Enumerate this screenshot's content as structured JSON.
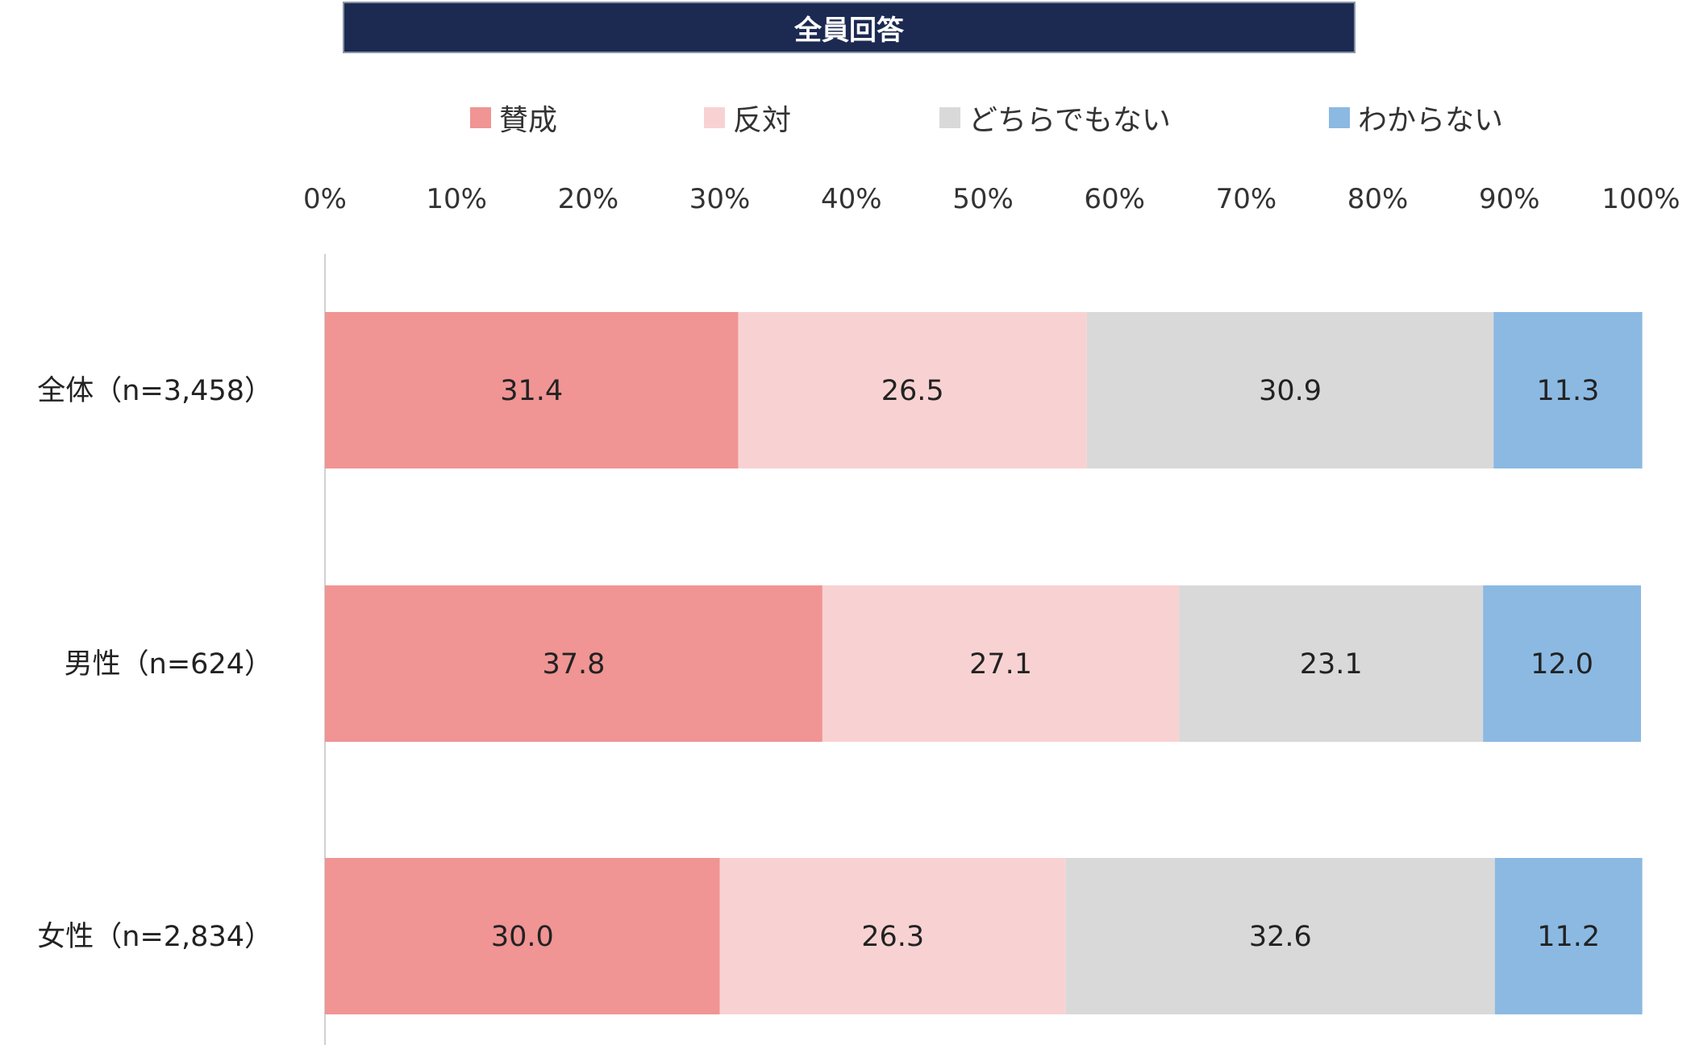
{
  "header": {
    "title": "全員回答"
  },
  "chart_data": {
    "type": "bar",
    "orientation": "horizontal",
    "stacked": "percent",
    "title": "全員回答",
    "categories": [
      "全体（n=3,458）",
      "男性（n=624）",
      "女性（n=2,834）"
    ],
    "series": [
      {
        "name": "賛成",
        "color": "#f09494",
        "values": [
          31.4,
          37.8,
          30.0
        ]
      },
      {
        "name": "反対",
        "color": "#f8d2d2",
        "values": [
          26.5,
          27.1,
          26.3
        ]
      },
      {
        "name": "どちらでもない",
        "color": "#d9d9d9",
        "values": [
          30.9,
          23.1,
          32.6
        ]
      },
      {
        "name": "わからない",
        "color": "#8bb9e2",
        "values": [
          11.3,
          12.0,
          11.2
        ]
      }
    ],
    "xlim": [
      0,
      100
    ],
    "xticks": [
      "0%",
      "10%",
      "20%",
      "30%",
      "40%",
      "50%",
      "60%",
      "70%",
      "80%",
      "90%",
      "100%"
    ],
    "grid": false,
    "legend_position": "top"
  }
}
